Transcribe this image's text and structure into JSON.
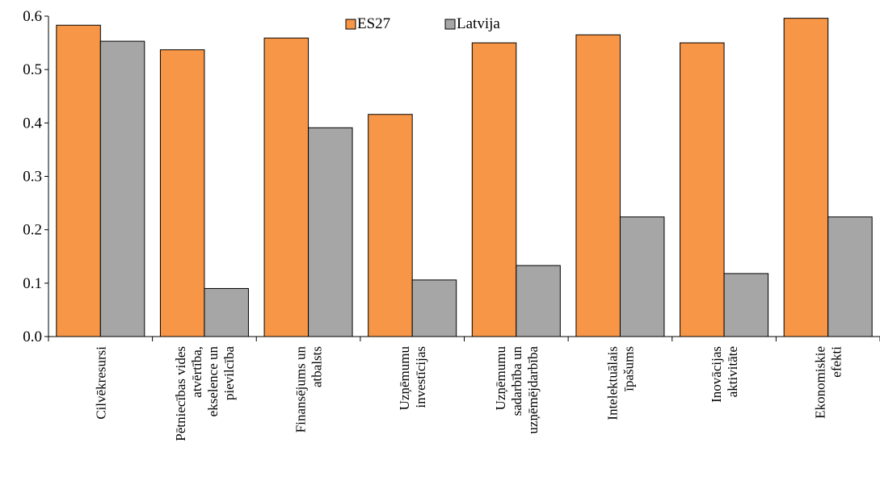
{
  "chart_data": {
    "type": "bar",
    "title": "",
    "xlabel": "",
    "ylabel": "",
    "ylim": [
      0,
      0.6
    ],
    "yticks": [
      "0.0",
      "0.1",
      "0.2",
      "0.3",
      "0.4",
      "0.5",
      "0.6"
    ],
    "grid": false,
    "legend_position": "top-center",
    "categories": [
      [
        "Cilvēkresursi"
      ],
      [
        "Pētniecības vides",
        "atvērtība,",
        "ekselence un",
        "pievilcība"
      ],
      [
        "Finansējums un",
        "atbalsts"
      ],
      [
        "Uzņēmumu",
        "investīcijas"
      ],
      [
        "Uzņēmumu",
        "sadarbība un",
        "uzņēmējdarbība"
      ],
      [
        "Intelektuālais",
        "īpašums"
      ],
      [
        "Inovācijas",
        "aktivitāte"
      ],
      [
        "Ekonomiskie",
        "efekti"
      ]
    ],
    "series": [
      {
        "name": "ES27",
        "color": "#F79646",
        "values": [
          0.583,
          0.537,
          0.559,
          0.416,
          0.55,
          0.565,
          0.55,
          0.596
        ]
      },
      {
        "name": "Latvija",
        "color": "#A6A6A6",
        "values": [
          0.553,
          0.09,
          0.391,
          0.106,
          0.133,
          0.224,
          0.118,
          0.224
        ]
      }
    ]
  }
}
